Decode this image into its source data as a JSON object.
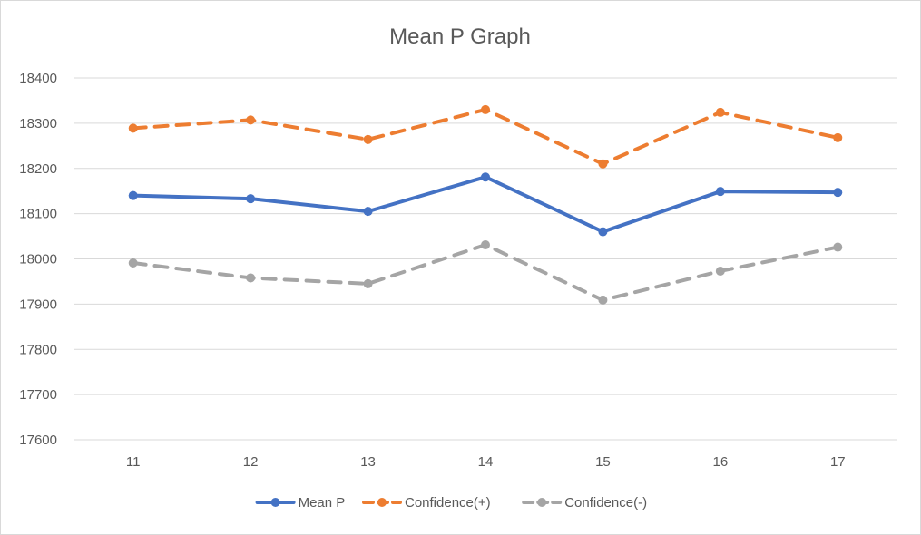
{
  "chart_data": {
    "type": "line",
    "title": "Mean P Graph",
    "xlabel": "",
    "ylabel": "",
    "categories": [
      "11",
      "12",
      "13",
      "14",
      "15",
      "16",
      "17"
    ],
    "ylim": [
      17600,
      18400
    ],
    "yticks": [
      "17600",
      "17700",
      "17800",
      "17900",
      "18000",
      "18100",
      "18200",
      "18300",
      "18400"
    ],
    "grid": true,
    "legend_position": "bottom",
    "series": [
      {
        "name": "Mean P",
        "color": "#4472c4",
        "dash": "solid",
        "values": [
          18140,
          18133,
          18105,
          18181,
          18060,
          18149,
          18147
        ]
      },
      {
        "name": "Confidence(+)",
        "color": "#ed7d31",
        "dash": "dashed",
        "values": [
          18289,
          18307,
          18264,
          18330,
          18210,
          18324,
          18268
        ]
      },
      {
        "name": "Confidence(-)",
        "color": "#a5a5a5",
        "dash": "dashed",
        "values": [
          17991,
          17958,
          17945,
          18031,
          17909,
          17973,
          18026
        ]
      }
    ]
  }
}
